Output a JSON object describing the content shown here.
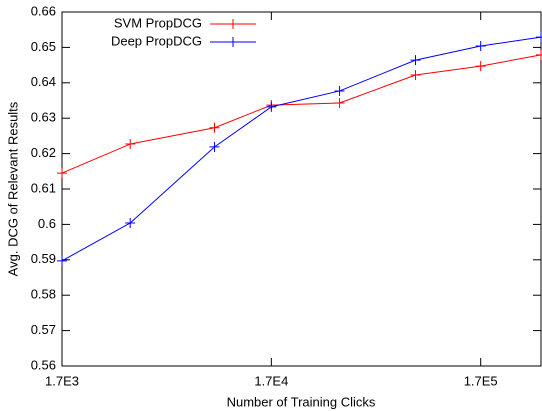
{
  "chart_data": {
    "type": "line",
    "x_label": "Number of Training Clicks",
    "y_label": "Avg. DCG of Relevant Results",
    "x": [
      1700,
      3600,
      9100,
      17000,
      36000,
      83000,
      170000,
      330000
    ],
    "series": [
      {
        "name": "SVM PropDCG",
        "color": "#ff0000",
        "values": [
          0.6145,
          0.6227,
          0.6273,
          0.6337,
          0.6343,
          0.6422,
          0.6447,
          0.6479
        ]
      },
      {
        "name": "Deep PropDCG",
        "color": "#0000ff",
        "values": [
          0.5897,
          0.6004,
          0.6219,
          0.6332,
          0.6377,
          0.6464,
          0.6504,
          0.6529
        ]
      }
    ],
    "xscale": "log",
    "xlim": [
      1700,
      330000
    ],
    "xticks": [
      {
        "value": 1700,
        "label": "1.7E3"
      },
      {
        "value": 17000,
        "label": "1.7E4"
      },
      {
        "value": 170000,
        "label": "1.7E5"
      }
    ],
    "ylim": [
      0.56,
      0.66
    ],
    "yticks": [
      0.56,
      0.57,
      0.58,
      0.59,
      0.6,
      0.61,
      0.62,
      0.63,
      0.64,
      0.65,
      0.66
    ],
    "legend": "upper left",
    "grid": false
  }
}
